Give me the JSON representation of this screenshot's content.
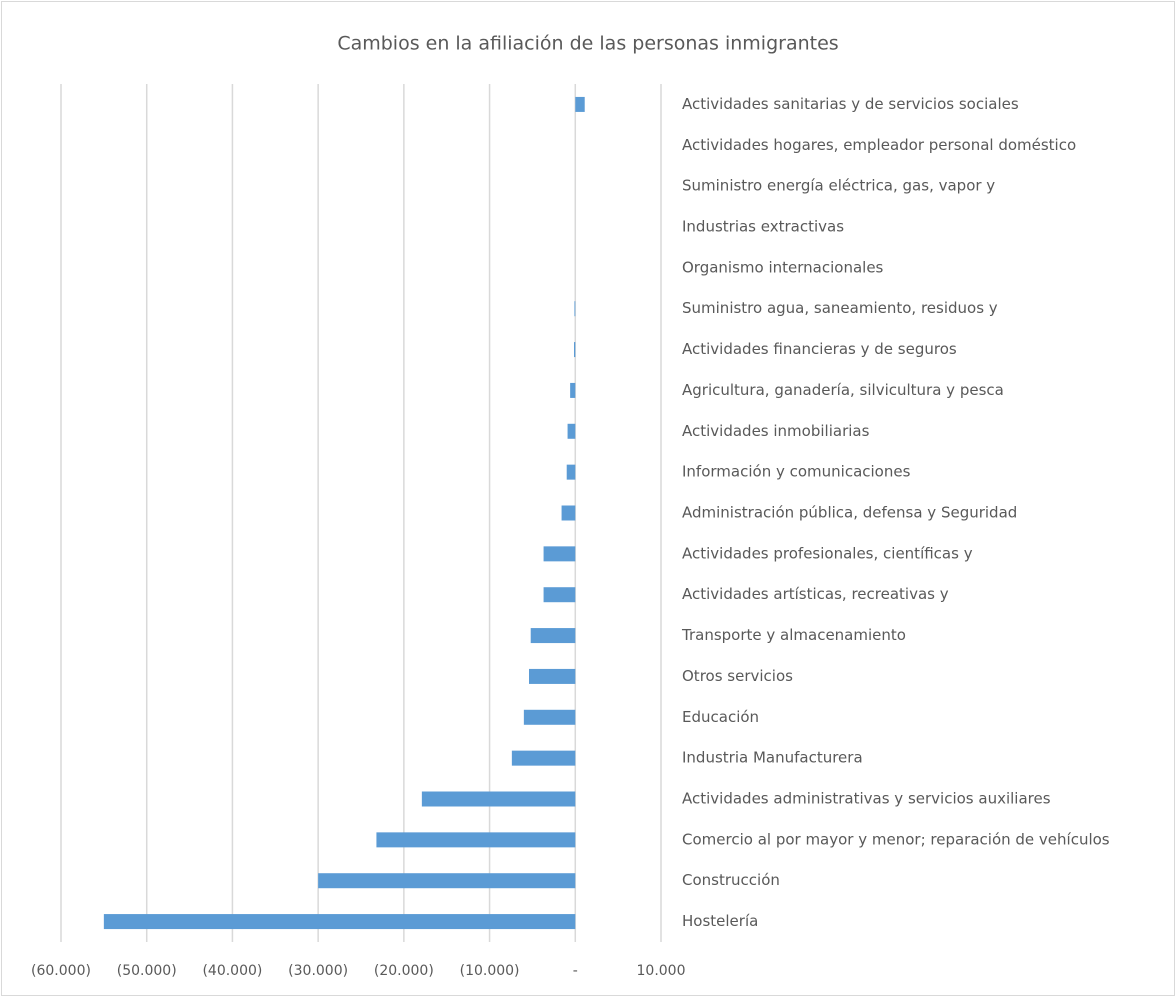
{
  "chart_data": {
    "type": "barh",
    "title": "Cambios en la afiliación de las personas inmigrantes",
    "categories": [
      "Actividades sanitarias y de servicios sociales",
      "Actividades hogares, empleador personal doméstico",
      "Suministro energía eléctrica, gas, vapor y",
      "Industrias extractivas",
      "Organismo internacionales",
      "Suministro agua, saneamiento, residuos y",
      "Actividades financieras y de seguros",
      "Agricultura, ganadería, silvicultura y pesca",
      "Actividades inmobiliarias",
      "Información y comunicaciones",
      "Administración pública, defensa y Seguridad",
      "Actividades profesionales, científicas y",
      "Actividades artísticas, recreativas y",
      "Transporte y almacenamiento",
      "Otros servicios",
      "Educación",
      "Industria Manufacturera",
      "Actividades administrativas y servicios auxiliares",
      "Comercio al por mayor y menor; reparación de vehículos",
      "Construcción",
      "Hostelería"
    ],
    "values": [
      1100,
      0,
      0,
      0,
      0,
      -100,
      -150,
      -600,
      -900,
      -1000,
      -1600,
      -3700,
      -3700,
      -5200,
      -5400,
      -6000,
      -7400,
      -17900,
      -23200,
      -30000,
      -55000
    ],
    "color": "#5b9bd5",
    "xlim": [
      -60000,
      10000
    ],
    "xticks": [
      {
        "value": -60000,
        "label": "(60.000)"
      },
      {
        "value": -50000,
        "label": "(50.000)"
      },
      {
        "value": -40000,
        "label": "(40.000)"
      },
      {
        "value": -30000,
        "label": "(30.000)"
      },
      {
        "value": -20000,
        "label": "(20.000)"
      },
      {
        "value": -10000,
        "label": "(10.000)"
      },
      {
        "value": 0,
        "label": "-"
      },
      {
        "value": 10000,
        "label": "10.000"
      }
    ],
    "grid": true
  }
}
